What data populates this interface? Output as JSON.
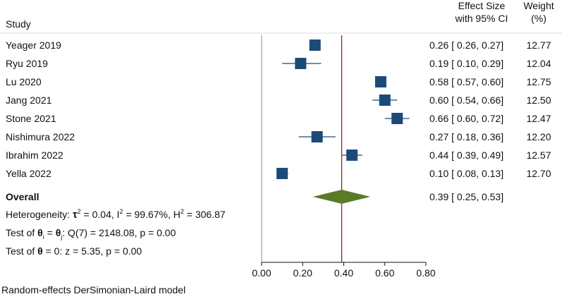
{
  "chart_data": {
    "type": "forest",
    "columns": {
      "study": "Study",
      "effect_line1": "Effect Size",
      "effect_line2": "with 95% CI",
      "weight_line1": "Weight",
      "weight_line2": "(%)"
    },
    "studies": [
      {
        "name": "Yeager 2019",
        "es": 0.26,
        "lo": 0.26,
        "hi": 0.27,
        "ci_text": "0.26 [ 0.26,  0.27]",
        "weight": "12.77"
      },
      {
        "name": "Ryu 2019",
        "es": 0.19,
        "lo": 0.1,
        "hi": 0.29,
        "ci_text": "0.19 [ 0.10,  0.29]",
        "weight": "12.04"
      },
      {
        "name": "Lu 2020",
        "es": 0.58,
        "lo": 0.57,
        "hi": 0.6,
        "ci_text": "0.58 [ 0.57,  0.60]",
        "weight": "12.75"
      },
      {
        "name": "Jang 2021",
        "es": 0.6,
        "lo": 0.54,
        "hi": 0.66,
        "ci_text": "0.60 [ 0.54,  0.66]",
        "weight": "12.50"
      },
      {
        "name": "Stone 2021",
        "es": 0.66,
        "lo": 0.6,
        "hi": 0.72,
        "ci_text": "0.66 [ 0.60,  0.72]",
        "weight": "12.47"
      },
      {
        "name": "Nishimura 2022",
        "es": 0.27,
        "lo": 0.18,
        "hi": 0.36,
        "ci_text": "0.27 [ 0.18,  0.36]",
        "weight": "12.20"
      },
      {
        "name": "Ibrahim 2022",
        "es": 0.44,
        "lo": 0.39,
        "hi": 0.49,
        "ci_text": "0.44 [ 0.39,  0.49]",
        "weight": "12.57"
      },
      {
        "name": "Yella 2022",
        "es": 0.1,
        "lo": 0.08,
        "hi": 0.13,
        "ci_text": "0.10 [ 0.08,  0.13]",
        "weight": "12.70"
      }
    ],
    "overall": {
      "label": "Overall",
      "es": 0.39,
      "lo": 0.25,
      "hi": 0.53,
      "ci_text": "0.39 [ 0.25,  0.53]"
    },
    "heterogeneity": {
      "prefix": "Heterogeneity: ",
      "tau_symbol": "τ",
      "tau_value": " = 0.04, I",
      "i2_value": " = 99.67%, H",
      "h2_value": " = 306.87",
      "sup": "2"
    },
    "test_equal": {
      "prefix": "Test of ",
      "theta": "θ",
      "sub_i": "i",
      "eq": " = ",
      "sub_j": "j",
      "rest": ": Q(7) = 2148.08, p = 0.00"
    },
    "test_zero": {
      "prefix": "Test of ",
      "theta": "θ",
      "rest": " = 0: z = 5.35, p = 0.00"
    },
    "x_ticks": [
      {
        "value": 0.0,
        "label": "0.00"
      },
      {
        "value": 0.2,
        "label": "0.20"
      },
      {
        "value": 0.4,
        "label": "0.40"
      },
      {
        "value": 0.6,
        "label": "0.60"
      },
      {
        "value": 0.8,
        "label": "0.80"
      }
    ],
    "xlim": [
      0,
      0.8
    ],
    "null_line": 0.0,
    "footnote": "Random-effects DerSimonian-Laird model",
    "colors": {
      "marker": "#1c4a78",
      "diamond": "#5a7a26",
      "overall_line": "#8b1a2a",
      "null_line": "#8a8a8a",
      "text": "#111111"
    }
  }
}
